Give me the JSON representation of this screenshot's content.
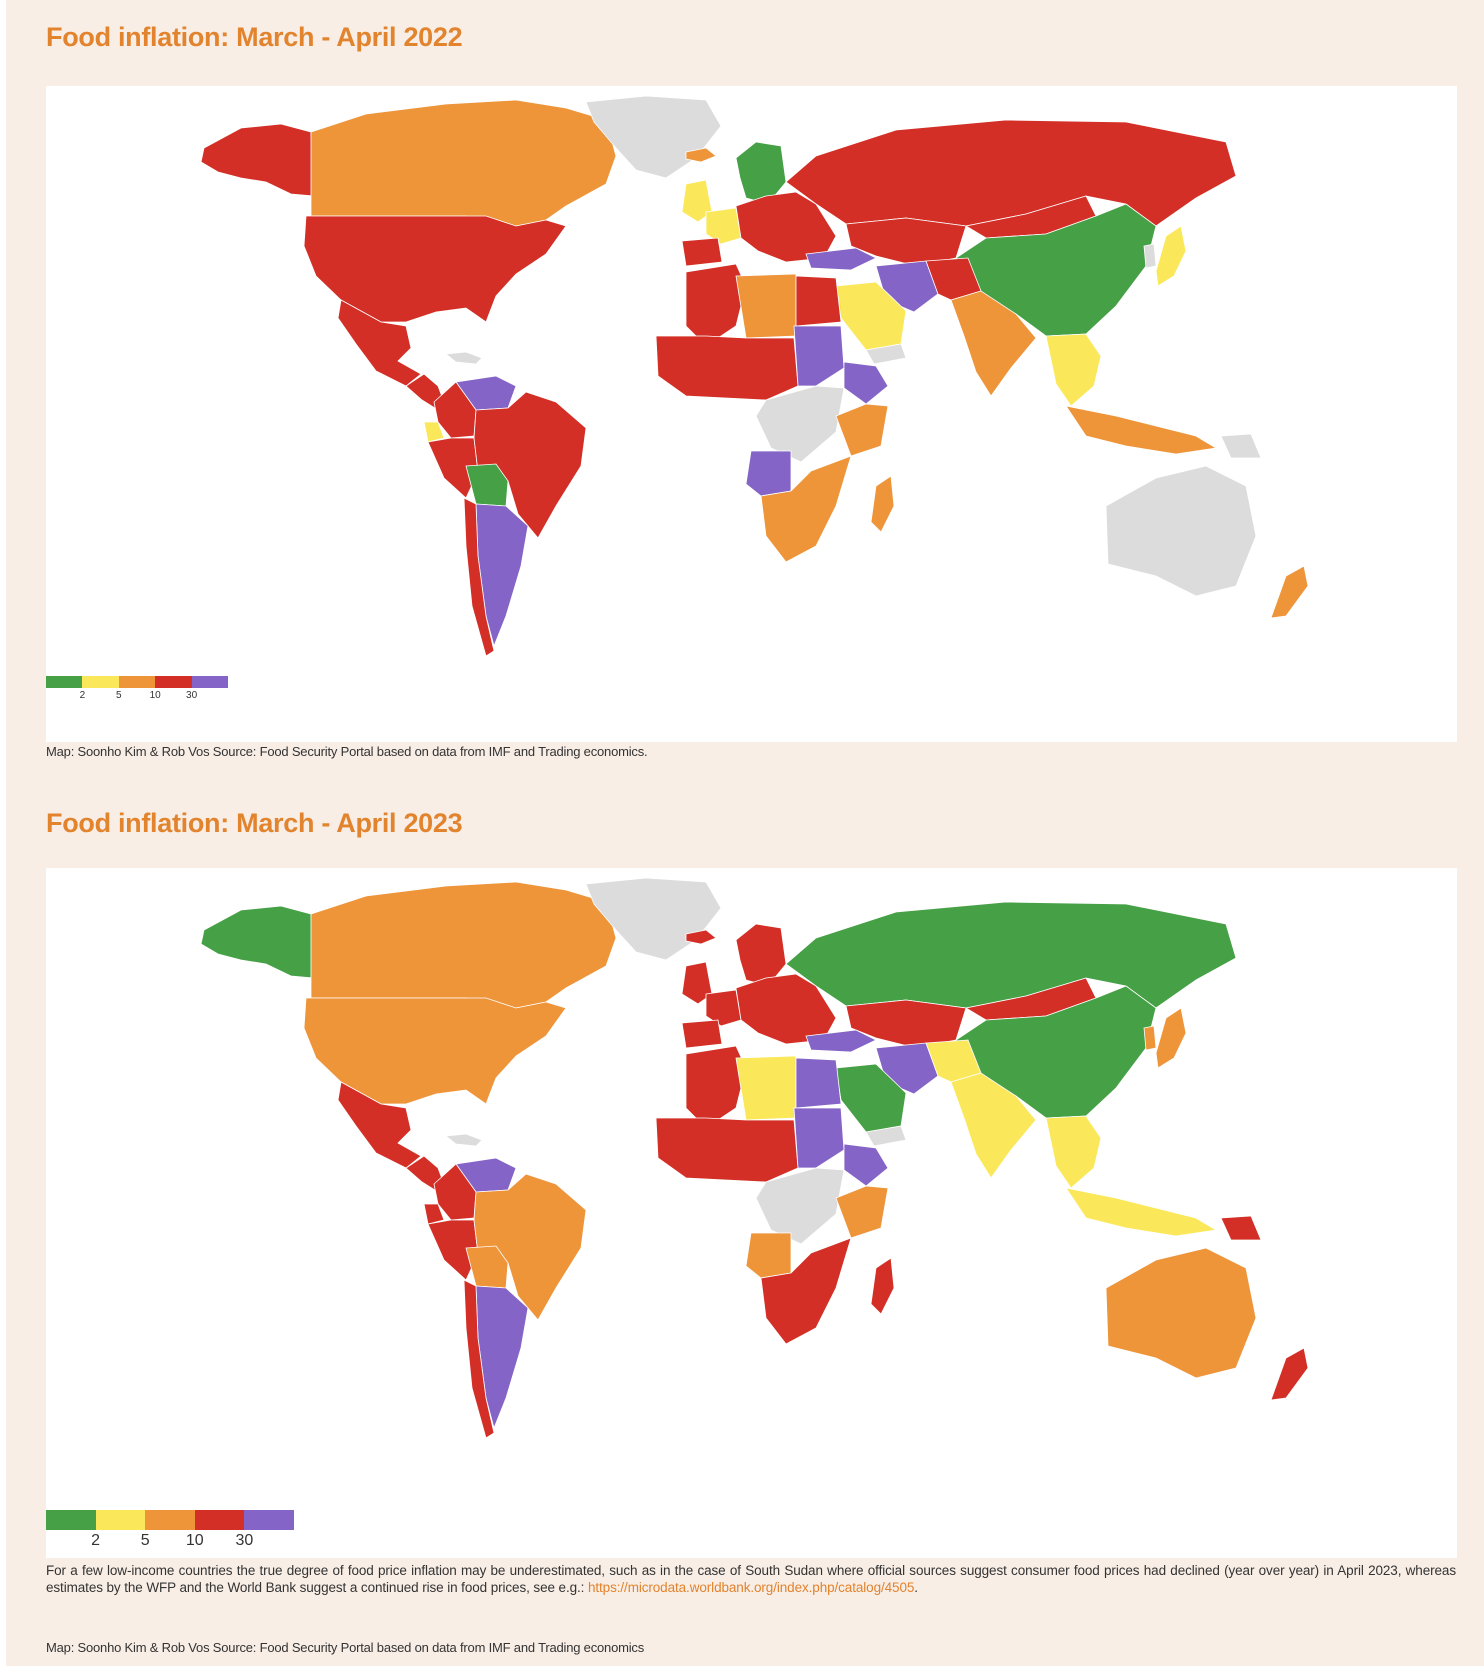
{
  "colors": {
    "green": "#46a046",
    "yellow": "#fbe85a",
    "orange": "#ee9439",
    "red": "#d32f26",
    "purple": "#8464c6",
    "nodata": "#dcdcdc",
    "title": "#e2832e",
    "background": "#f8eee6"
  },
  "legend": {
    "swatch_colors": [
      "#46a046",
      "#fbe85a",
      "#ee9439",
      "#d32f26",
      "#8464c6"
    ],
    "tick_labels": [
      "2",
      "5",
      "10",
      "30"
    ]
  },
  "map1": {
    "title": "Food inflation: March - April 2022",
    "caption": "Map: Soonho Kim & Rob Vos Source: Food Security Portal based on data from IMF and Trading economics.",
    "regions": {
      "alaska": "red",
      "canada": "orange",
      "greenland": "nodata",
      "iceland": "orange",
      "usa": "red",
      "mexico": "red",
      "central_america": "red",
      "caribbean": "nodata",
      "colombia": "red",
      "venezuela": "purple",
      "ecuador": "yellow",
      "peru": "red",
      "brazil": "red",
      "bolivia": "green",
      "argentina": "purple",
      "chile": "red",
      "scandinavia": "green",
      "uk": "yellow",
      "france": "yellow",
      "spain": "red",
      "europe": "red",
      "russia": "red",
      "kazakhstan": "red",
      "mongolia": "red",
      "china": "green",
      "japan": "yellow",
      "korea": "nodata",
      "turkey": "purple",
      "iran": "purple",
      "saudi": "yellow",
      "yemen": "nodata",
      "afghanistan": "red",
      "india": "orange",
      "se_asia": "yellow",
      "indonesia": "orange",
      "png": "nodata",
      "australia": "nodata",
      "new_zealand": "orange",
      "north_africa": "red",
      "libya": "orange",
      "egypt": "red",
      "sahel": "red",
      "sudan": "purple",
      "ethiopia": "purple",
      "central_africa": "nodata",
      "east_africa": "orange",
      "angola": "purple",
      "southern_africa": "orange",
      "madagascar": "orange"
    }
  },
  "map2": {
    "title": "Food inflation: March - April 2023",
    "note_text": "For a few low-income countries the true degree of food price inflation may be underestimated, such as in the case of South Sudan where official sources suggest consumer food prices had declined (year over year) in April 2023, whereas estimates by the WFP and the World Bank suggest a continued rise in food prices, see e.g.:",
    "note_link": "https://microdata.worldbank.org/index.php/catalog/4505",
    "caption": "Map: Soonho Kim & Rob Vos Source: Food Security Portal based on data from IMF and Trading economics",
    "regions": {
      "alaska": "green",
      "canada": "orange",
      "greenland": "nodata",
      "iceland": "red",
      "usa": "orange",
      "mexico": "red",
      "central_america": "red",
      "caribbean": "nodata",
      "colombia": "red",
      "venezuela": "purple",
      "ecuador": "red",
      "peru": "red",
      "brazil": "orange",
      "bolivia": "orange",
      "argentina": "purple",
      "chile": "red",
      "scandinavia": "red",
      "uk": "red",
      "france": "red",
      "spain": "red",
      "europe": "red",
      "russia": "green",
      "kazakhstan": "red",
      "mongolia": "red",
      "china": "green",
      "japan": "orange",
      "korea": "orange",
      "turkey": "purple",
      "iran": "purple",
      "saudi": "green",
      "yemen": "nodata",
      "afghanistan": "yellow",
      "india": "yellow",
      "se_asia": "yellow",
      "indonesia": "yellow",
      "png": "red",
      "australia": "orange",
      "new_zealand": "red",
      "north_africa": "red",
      "libya": "yellow",
      "egypt": "purple",
      "sahel": "red",
      "sudan": "purple",
      "ethiopia": "purple",
      "central_africa": "nodata",
      "east_africa": "orange",
      "angola": "orange",
      "southern_africa": "red",
      "madagascar": "red"
    }
  }
}
